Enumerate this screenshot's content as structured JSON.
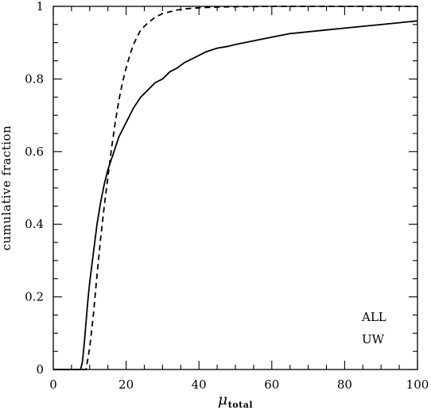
{
  "chart_data": {
    "type": "line",
    "title": "",
    "xlabel": "μ",
    "xlabel_subscript": "total",
    "ylabel": "cumulative fraction",
    "xlim": [
      0,
      100
    ],
    "ylim": [
      0,
      1
    ],
    "xticks": [
      0,
      20,
      40,
      60,
      80,
      100
    ],
    "yticks": [
      0,
      0.2,
      0.4,
      0.6,
      0.8,
      1
    ],
    "xtick_labels": [
      "0",
      "20",
      "40",
      "60",
      "80",
      "100"
    ],
    "ytick_labels": [
      "0",
      "0.2",
      "0.4",
      "0.6",
      "0.8",
      "1"
    ],
    "grid": false,
    "legend_position": "bottom-right",
    "series": [
      {
        "name": "ALL",
        "style": "solid",
        "color": "#000000",
        "x": [
          0,
          7.5,
          8,
          8.5,
          9,
          9.5,
          10,
          10.5,
          11,
          11.5,
          12,
          13,
          14,
          15,
          16,
          17,
          18,
          19,
          20,
          21,
          22,
          24,
          26,
          28,
          30,
          32,
          34,
          36,
          38,
          40,
          42,
          45,
          48,
          50,
          55,
          60,
          65,
          70,
          75,
          80,
          85,
          90,
          95,
          100
        ],
        "y": [
          0,
          0,
          0.02,
          0.07,
          0.13,
          0.19,
          0.24,
          0.28,
          0.32,
          0.36,
          0.4,
          0.46,
          0.51,
          0.55,
          0.58,
          0.61,
          0.64,
          0.66,
          0.68,
          0.7,
          0.72,
          0.75,
          0.77,
          0.79,
          0.8,
          0.82,
          0.83,
          0.845,
          0.855,
          0.865,
          0.875,
          0.885,
          0.89,
          0.895,
          0.905,
          0.915,
          0.925,
          0.93,
          0.935,
          0.94,
          0.945,
          0.95,
          0.955,
          0.96
        ]
      },
      {
        "name": "UW",
        "style": "dashed",
        "color": "#000000",
        "x": [
          0,
          9,
          10,
          11,
          12,
          13,
          14,
          15,
          16,
          17,
          18,
          19,
          20,
          21,
          22,
          23,
          24,
          26,
          28,
          30,
          32,
          34,
          36,
          40,
          45,
          50,
          60,
          70,
          80,
          100
        ],
        "y": [
          0,
          0,
          0.06,
          0.15,
          0.26,
          0.36,
          0.45,
          0.53,
          0.61,
          0.68,
          0.74,
          0.79,
          0.83,
          0.865,
          0.895,
          0.915,
          0.935,
          0.955,
          0.97,
          0.98,
          0.985,
          0.99,
          0.993,
          0.996,
          0.998,
          0.999,
          1.0,
          1.0,
          1.0,
          1.0
        ]
      }
    ]
  },
  "legend": {
    "items": [
      "ALL",
      "UW"
    ]
  }
}
